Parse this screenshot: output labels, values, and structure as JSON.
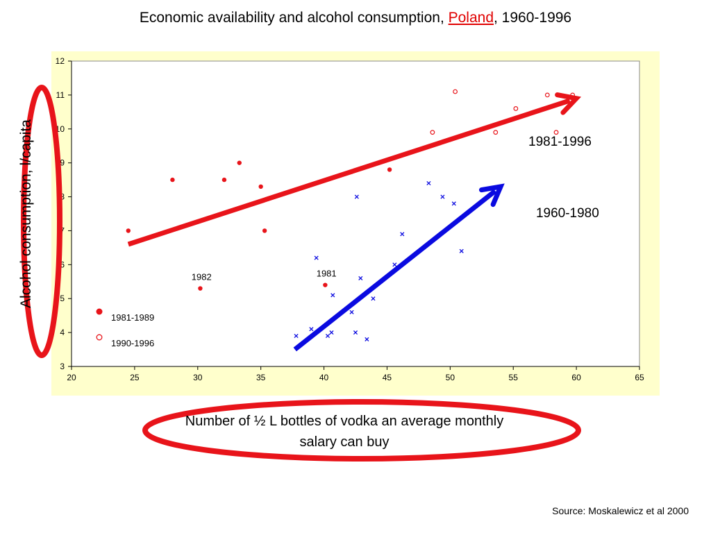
{
  "slide": {
    "title_before": "Economic availability and alcohol consumption, ",
    "title_highlight": "Poland",
    "title_after": ", 1960-1996",
    "source": "Source: Moskalewicz et al 2000"
  },
  "colors": {
    "red": "#e8141a",
    "blue": "#0a0ae0",
    "plot_background": "#ffffcc"
  },
  "chart_data": {
    "type": "scatter",
    "title": "Economic availability and alcohol consumption, Poland, 1960-1996",
    "xlabel": "Number of ½ L bottles of vodka an average monthly salary can buy",
    "ylabel": "Alcohol consumption, l/capita",
    "xlim": [
      20,
      65
    ],
    "ylim": [
      3,
      12
    ],
    "x_ticks": [
      20,
      25,
      30,
      35,
      40,
      45,
      50,
      55,
      60,
      65
    ],
    "y_ticks": [
      3,
      4,
      5,
      6,
      7,
      8,
      9,
      10,
      11,
      12
    ],
    "y_tick_labels": [
      "3",
      "4",
      "5",
      "6",
      "7",
      "8",
      "9",
      "10",
      "11",
      "12"
    ],
    "grid": false,
    "series": [
      {
        "name": "1960-1980",
        "marker": "x",
        "color": "#0a0ae0",
        "points": [
          [
            37.8,
            3.9
          ],
          [
            39.0,
            4.1
          ],
          [
            39.4,
            6.2
          ],
          [
            40.3,
            3.9
          ],
          [
            40.6,
            4.0
          ],
          [
            40.7,
            5.1
          ],
          [
            42.2,
            4.6
          ],
          [
            42.5,
            4.0
          ],
          [
            42.6,
            8.0
          ],
          [
            42.9,
            5.6
          ],
          [
            43.4,
            3.8
          ],
          [
            43.9,
            5.0
          ],
          [
            45.6,
            6.0
          ],
          [
            46.2,
            6.9
          ],
          [
            48.3,
            8.4
          ],
          [
            49.4,
            8.0
          ],
          [
            50.3,
            7.8
          ],
          [
            50.9,
            6.4
          ],
          [
            53.9,
            8.3
          ]
        ]
      },
      {
        "name": "1981-1989",
        "marker": "filled-circle",
        "color": "#e8141a",
        "points": [
          [
            24.5,
            7.0
          ],
          [
            28.0,
            8.5
          ],
          [
            30.2,
            5.3
          ],
          [
            32.1,
            8.5
          ],
          [
            33.3,
            9.0
          ],
          [
            35.0,
            8.3
          ],
          [
            35.3,
            7.0
          ],
          [
            40.1,
            5.4
          ],
          [
            45.2,
            8.8
          ]
        ]
      },
      {
        "name": "1990-1996",
        "marker": "open-circle",
        "color": "#e8141a",
        "points": [
          [
            48.6,
            9.9
          ],
          [
            50.4,
            11.1
          ],
          [
            53.6,
            9.9
          ],
          [
            55.2,
            10.6
          ],
          [
            57.7,
            11.0
          ],
          [
            58.4,
            9.9
          ],
          [
            59.7,
            11.0
          ]
        ]
      }
    ],
    "trend_arrows": [
      {
        "name": "1981-1996",
        "color": "#e8141a",
        "from": [
          24.5,
          6.6
        ],
        "to": [
          60.0,
          10.9
        ]
      },
      {
        "name": "1960-1980",
        "color": "#0a0ae0",
        "from": [
          37.7,
          3.5
        ],
        "to": [
          54.0,
          8.3
        ]
      }
    ],
    "annotations": [
      {
        "text": "1982",
        "x": 30.3,
        "y": 5.55
      },
      {
        "text": "1981",
        "x": 40.2,
        "y": 5.65
      }
    ],
    "arrow_labels": [
      {
        "text": "1981-1996",
        "x": 56.2,
        "y": 9.5
      },
      {
        "text": "1960-1980",
        "x": 56.8,
        "y": 7.4
      }
    ],
    "legend": {
      "placement": "bottom-left",
      "entries": [
        {
          "label": "1981-1989",
          "marker": "filled-circle"
        },
        {
          "label": "1990-1996",
          "marker": "open-circle"
        }
      ]
    }
  }
}
